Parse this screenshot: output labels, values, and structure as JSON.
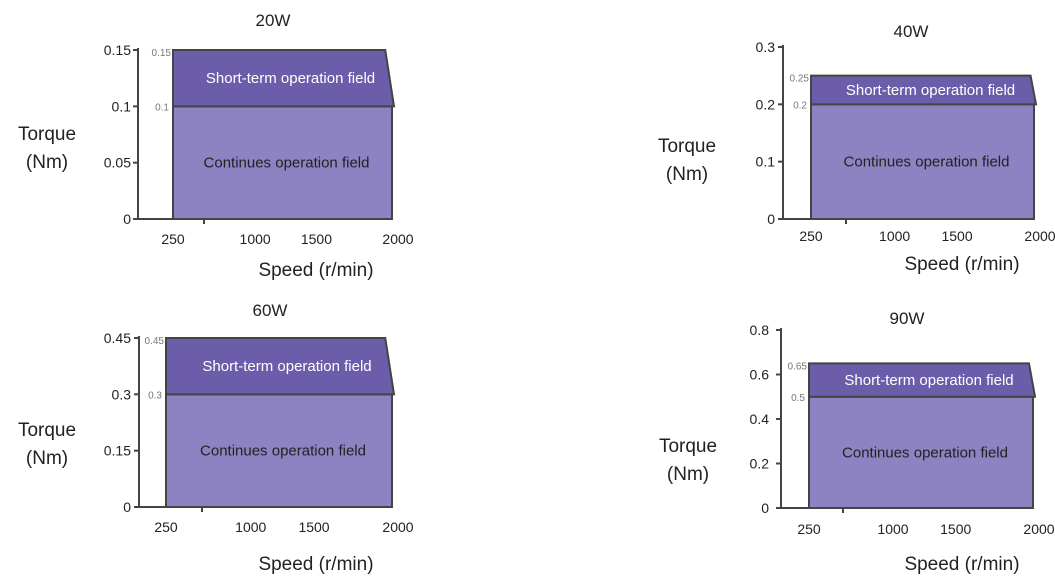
{
  "colors": {
    "continuous_field": "#8d83c2",
    "short_term_field": "#6c5dab",
    "outline": "#444444",
    "text": "#222222"
  },
  "chart_data": [
    {
      "type": "area",
      "title": "20W",
      "xlabel": "Speed (r/min)",
      "ylabel": [
        "Torque",
        "(Nm)"
      ],
      "x_ticks": [
        250,
        1000,
        1500,
        2000
      ],
      "y_ticks": [
        0,
        0.05,
        0.1,
        0.15
      ],
      "y_tick_labels": [
        "0",
        "0.05",
        "0.1",
        "0.15"
      ],
      "ylim": [
        0,
        0.15
      ],
      "continuous_torque": 0.1,
      "peak_torque": 0.15,
      "continuous_label": "0.1",
      "peak_label": "0.15",
      "region_labels": {
        "short_term": "Short-term operation field",
        "continuous": "Continues operation field"
      }
    },
    {
      "type": "area",
      "title": "40W",
      "xlabel": "Speed (r/min)",
      "ylabel": [
        "Torque",
        "(Nm)"
      ],
      "x_ticks": [
        250,
        1000,
        1500,
        2000
      ],
      "y_ticks": [
        0,
        0.1,
        0.2,
        0.3
      ],
      "y_tick_labels": [
        "0",
        "0.1",
        "0.2",
        "0.3"
      ],
      "ylim": [
        0,
        0.3
      ],
      "continuous_torque": 0.2,
      "peak_torque": 0.25,
      "continuous_label": "0.2",
      "peak_label": "0.25",
      "region_labels": {
        "short_term": "Short-term operation field",
        "continuous": "Continues operation field"
      }
    },
    {
      "type": "area",
      "title": "60W",
      "xlabel": "Speed (r/min)",
      "ylabel": [
        "Torque",
        "(Nm)"
      ],
      "x_ticks": [
        250,
        1000,
        1500,
        2000
      ],
      "y_ticks": [
        0,
        0.15,
        0.3,
        0.45
      ],
      "y_tick_labels": [
        "0",
        "0.15",
        "0.3",
        "0.45"
      ],
      "ylim": [
        0,
        0.45
      ],
      "continuous_torque": 0.3,
      "peak_torque": 0.45,
      "continuous_label": "0.3",
      "peak_label": "0.45",
      "region_labels": {
        "short_term": "Short-term operation field",
        "continuous": "Continues operation field"
      }
    },
    {
      "type": "area",
      "title": "90W",
      "xlabel": "Speed (r/min)",
      "ylabel": [
        "Torque",
        "(Nm)"
      ],
      "x_ticks": [
        250,
        1000,
        1500,
        2000
      ],
      "y_ticks": [
        0,
        0.2,
        0.4,
        0.6,
        0.8
      ],
      "y_tick_labels": [
        "0",
        "0.2",
        "0.4",
        "0.6",
        "0.8"
      ],
      "ylim": [
        0,
        0.8
      ],
      "continuous_torque": 0.5,
      "peak_torque": 0.65,
      "continuous_label": "0.5",
      "peak_label": "0.65",
      "region_labels": {
        "short_term": "Short-term operation field",
        "continuous": "Continues operation field"
      }
    }
  ]
}
